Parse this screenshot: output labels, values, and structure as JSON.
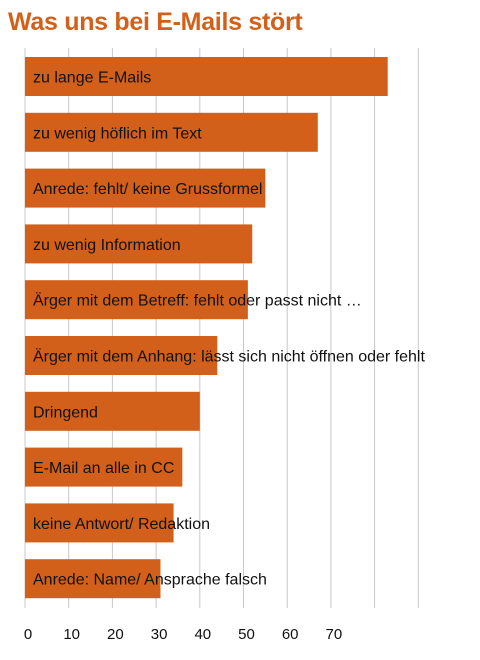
{
  "chart_data": {
    "type": "bar",
    "orientation": "horizontal",
    "title": "Was uns bei E-Mails stört",
    "categories": [
      "zu lange E-Mails",
      "zu wenig höflich im Text",
      "Anrede: fehlt/ keine Grussformel",
      "zu wenig Information",
      "Ärger mit dem Betreff: fehlt oder passt nicht …",
      "Ärger mit dem Anhang: lässt sich nicht öffnen oder fehlt",
      "Dringend",
      "E-Mail an alle in CC",
      "keine Antwort/ Redaktion",
      "Anrede: Name/ Ansprache falsch"
    ],
    "values": [
      83,
      67,
      55,
      52,
      51,
      44,
      40,
      36,
      34,
      31
    ],
    "xticks": [
      0,
      10,
      20,
      30,
      40,
      50,
      60,
      70
    ],
    "xlim": [
      0,
      90
    ],
    "xlabel": "",
    "ylabel": "",
    "grid": true,
    "colors": {
      "bar": "#d2601a",
      "title": "#d2601a",
      "grid": "#c8c8c8"
    }
  }
}
